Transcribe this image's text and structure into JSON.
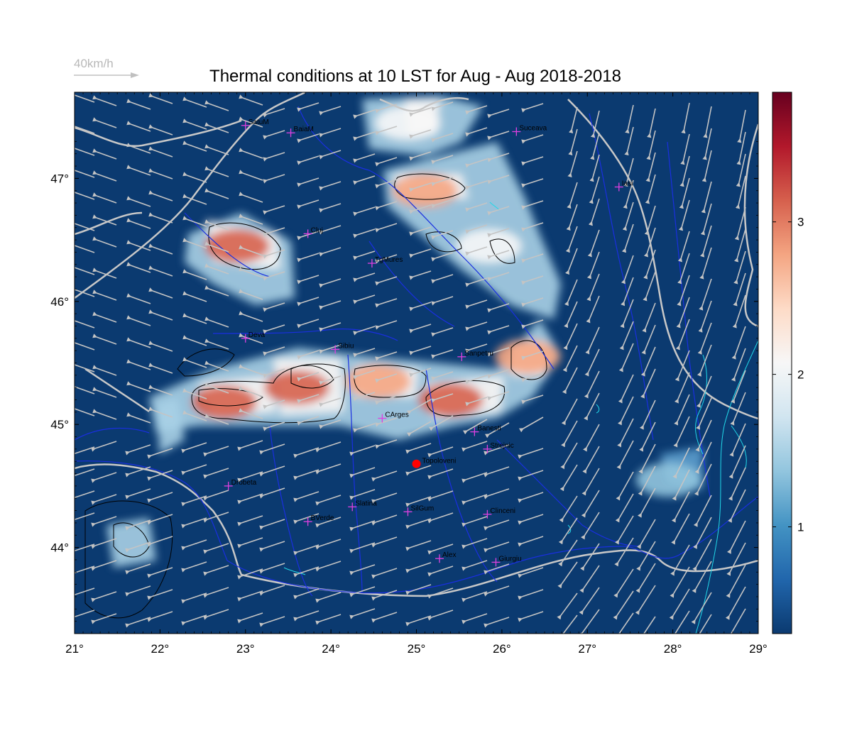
{
  "title": "Thermal conditions at 10 LST for Aug - Aug  2018-2018",
  "wind_reference": {
    "label": "40km/h"
  },
  "map": {
    "lon_range": [
      21,
      29
    ],
    "lat_range": [
      43.3,
      47.7
    ],
    "x_ticks": [
      "21°",
      "22°",
      "23°",
      "24°",
      "25°",
      "26°",
      "27°",
      "28°",
      "29°"
    ],
    "y_ticks": [
      "44°",
      "45°",
      "46°",
      "47°"
    ],
    "background_color": "#0b3a70",
    "river_color": "#1a2fe0",
    "border_color": "#c8c8c8",
    "coast_color": "#22d8e8",
    "cities": [
      {
        "name": "SatuM",
        "lon": 23.0,
        "lat": 47.43
      },
      {
        "name": "BaiaM",
        "lon": 23.53,
        "lat": 47.37
      },
      {
        "name": "Suceava",
        "lon": 26.17,
        "lat": 47.38
      },
      {
        "name": "Iasi",
        "lon": 27.37,
        "lat": 46.93
      },
      {
        "name": "Cluj",
        "lon": 23.73,
        "lat": 46.55
      },
      {
        "name": "TgMures",
        "lon": 24.48,
        "lat": 46.31
      },
      {
        "name": "Deva",
        "lon": 23.0,
        "lat": 45.7
      },
      {
        "name": "Sibiu",
        "lon": 24.05,
        "lat": 45.61
      },
      {
        "name": "Sanpetru",
        "lon": 25.53,
        "lat": 45.55
      },
      {
        "name": "CArges",
        "lon": 24.6,
        "lat": 45.05
      },
      {
        "name": "Banesti",
        "lon": 25.68,
        "lat": 44.94
      },
      {
        "name": "Strejnic",
        "lon": 25.83,
        "lat": 44.8
      },
      {
        "name": "Drobeta",
        "lon": 22.8,
        "lat": 44.5
      },
      {
        "name": "Slatina",
        "lon": 24.25,
        "lat": 44.33
      },
      {
        "name": "SilGum",
        "lon": 24.9,
        "lat": 44.29
      },
      {
        "name": "Clinceni",
        "lon": 25.83,
        "lat": 44.27
      },
      {
        "name": "BVerde",
        "lon": 23.73,
        "lat": 44.21
      },
      {
        "name": "Alex",
        "lon": 25.27,
        "lat": 43.91
      },
      {
        "name": "Giurgiu",
        "lon": 25.93,
        "lat": 43.88
      }
    ],
    "site": {
      "name": "Topoloveni",
      "lon": 25.0,
      "lat": 44.68,
      "color": "#ff0000"
    }
  },
  "colorbar": {
    "range": [
      0.3,
      3.85
    ],
    "ticks": [
      "1",
      "2",
      "3"
    ],
    "tick_values": [
      1,
      2,
      3
    ],
    "colors": [
      "#0b3a70",
      "#2166ac",
      "#4393c3",
      "#92c5de",
      "#d1e5f0",
      "#f7f7f7",
      "#fddbc7",
      "#f4a582",
      "#d6604d",
      "#b2182b",
      "#67001f"
    ]
  },
  "chart_data": {
    "type": "heatmap",
    "title": "Thermal conditions at 10 LST for Aug - Aug  2018-2018",
    "x_ticks": [
      "21°",
      "22°",
      "23°",
      "24°",
      "25°",
      "26°",
      "27°",
      "28°",
      "29°"
    ],
    "y_ticks": [
      "44°",
      "45°",
      "46°",
      "47°"
    ],
    "value_range": [
      0.3,
      3.85
    ],
    "hotspots": [
      {
        "lon": 22.75,
        "lat": 45.18,
        "value": 3.1
      },
      {
        "lon": 23.6,
        "lat": 45.3,
        "value": 3.0
      },
      {
        "lon": 24.55,
        "lat": 45.35,
        "value": 2.9
      },
      {
        "lon": 25.4,
        "lat": 45.2,
        "value": 3.0
      },
      {
        "lon": 26.3,
        "lat": 45.55,
        "value": 2.9
      },
      {
        "lon": 22.9,
        "lat": 46.45,
        "value": 3.0
      },
      {
        "lon": 25.1,
        "lat": 46.9,
        "value": 2.8
      },
      {
        "lon": 25.85,
        "lat": 46.45,
        "value": 2.2
      },
      {
        "lon": 24.9,
        "lat": 47.45,
        "value": 2.1
      },
      {
        "lon": 27.95,
        "lat": 44.55,
        "value": 1.5
      }
    ]
  }
}
